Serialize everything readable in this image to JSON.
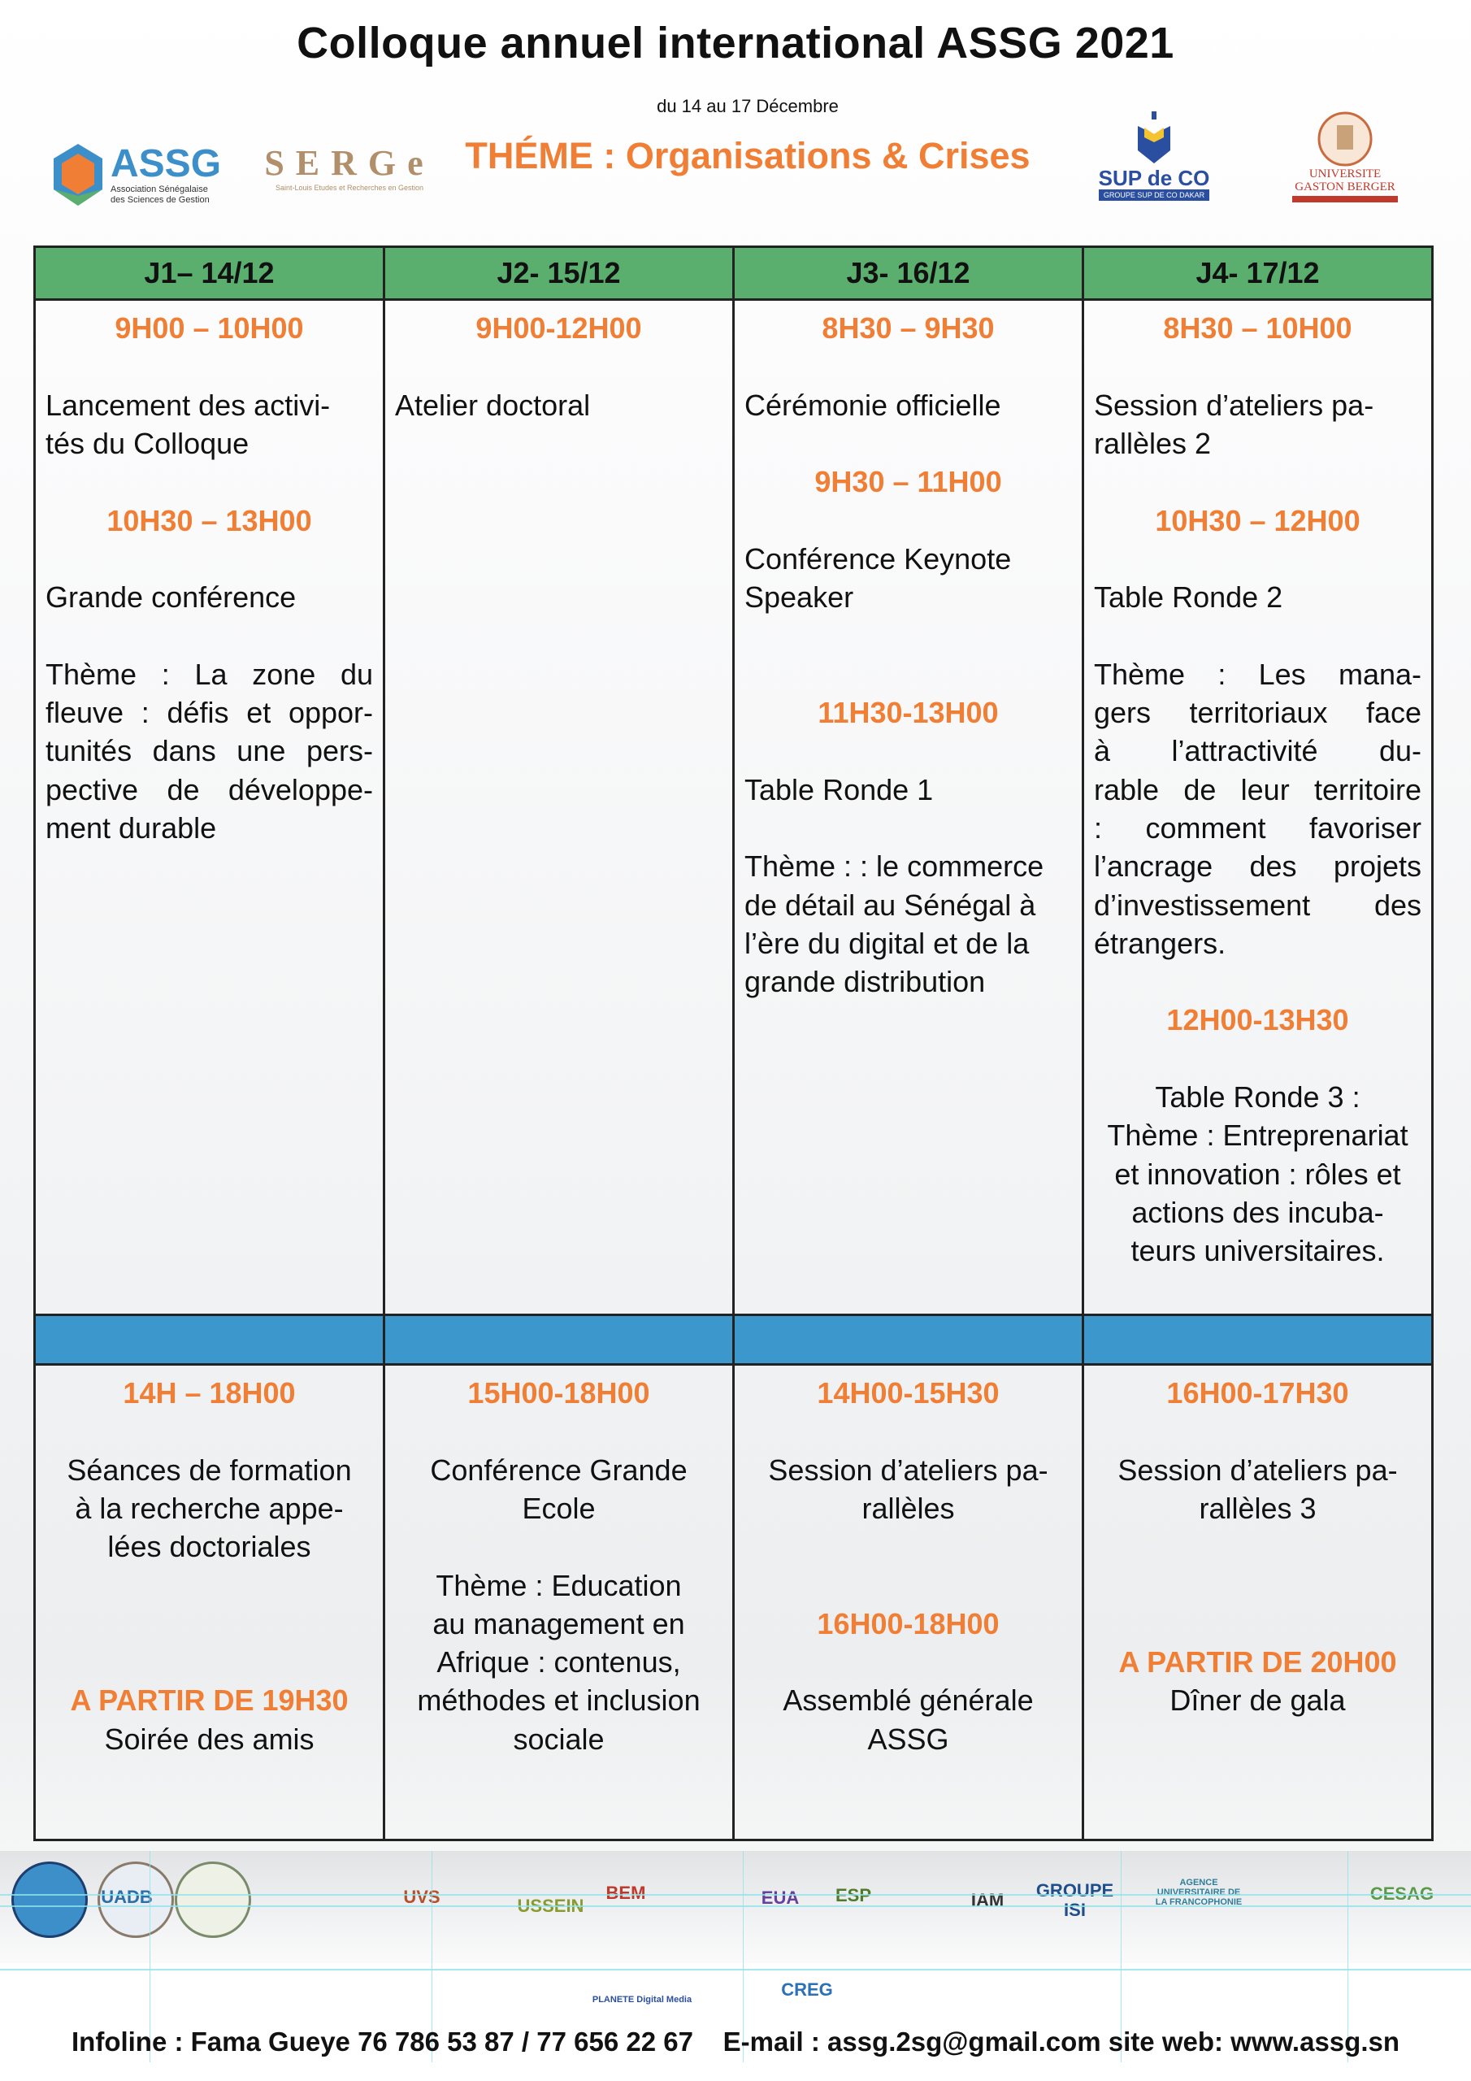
{
  "header": {
    "title": "Colloque annuel international ASSG 2021",
    "dates": "du 14 au 17 Décembre",
    "theme": "THÉME : Organisations & Crises",
    "logos": {
      "assg": "ASSG",
      "assg_sub": "Association Sénégalaise des Sciences de Gestion",
      "serge": "SERGe",
      "serge_sub": "Saint-Louis Etudes et Recherches en Gestion",
      "supdeco": "SUP de CO",
      "supdeco_sub": "GROUPE SUP DE CO DAKAR",
      "ugb": "UNIVERSITE GASTON BERGER"
    }
  },
  "colors": {
    "header_green": "#5aaf6e",
    "separator_blue": "#3c97cd",
    "time_orange": "#f07f35"
  },
  "schedule": {
    "days": [
      "J1– 14/12",
      "J2- 15/12",
      "J3- 16/12",
      "J4- 17/12"
    ],
    "morning": [
      [
        {
          "kind": "time",
          "lines": [
            "9H00 – 10H00"
          ]
        },
        {
          "kind": "text",
          "lines": [
            "Lancement des activi-",
            "tés du Colloque"
          ]
        },
        {
          "kind": "time",
          "lines": [
            "10H30 – 13H00"
          ]
        },
        {
          "kind": "text",
          "lines": [
            " Grande conférence"
          ]
        },
        {
          "kind": "text",
          "lines": [
            "Thème : La zone du",
            "fleuve : défis et oppor-",
            "tunités dans une pers-",
            "pective de développe-",
            "ment durable"
          ]
        }
      ],
      [
        {
          "kind": "time",
          "lines": [
            "9H00-12H00"
          ]
        },
        {
          "kind": "text",
          "lines": [
            "Atelier doctoral"
          ]
        }
      ],
      [
        {
          "kind": "time",
          "lines": [
            "8H30 – 9H30"
          ]
        },
        {
          "kind": "text",
          "lines": [
            "Cérémonie officielle"
          ]
        },
        {
          "kind": "time",
          "lines": [
            "9H30 – 11H00"
          ]
        },
        {
          "kind": "text",
          "lines": [
            "Conférence Keynote",
            "Speaker"
          ]
        },
        {
          "kind": "time",
          "lines": [
            "11H30-13H00"
          ]
        },
        {
          "kind": "text",
          "lines": [
            "Table Ronde 1"
          ]
        },
        {
          "kind": "text",
          "lines": [
            "Thème : : le commerce",
            "de détail au Sénégal à",
            "l’ère du digital et de la",
            "grande distribution"
          ]
        }
      ],
      [
        {
          "kind": "time",
          "lines": [
            "8H30 – 10H00"
          ]
        },
        {
          "kind": "text",
          "lines": [
            "Session d’ateliers pa-",
            "rallèles 2"
          ]
        },
        {
          "kind": "time",
          "lines": [
            "10H30 – 12H00"
          ]
        },
        {
          "kind": "text",
          "lines": [
            "Table Ronde 2"
          ]
        },
        {
          "kind": "text",
          "lines": [
            "Thème : Les mana-",
            "gers territoriaux face",
            "à l’attractivité du-",
            "rable de leur territoire",
            ": comment favoriser",
            "l’ancrage des projets",
            "d’investissement des",
            "étrangers."
          ]
        },
        {
          "kind": "time",
          "lines": [
            "12H00-13H30"
          ]
        },
        {
          "kind": "text",
          "lines": [
            "Table Ronde 3 :",
            "Thème : Entreprenariat",
            "et innovation : rôles et",
            "actions des incuba-",
            "teurs universitaires."
          ]
        }
      ]
    ],
    "afternoon": [
      [
        {
          "kind": "time",
          "lines": [
            "14H – 18H00"
          ]
        },
        {
          "kind": "text",
          "lines": [
            "Séances de formation",
            "à la recherche appe-",
            "lées doctoriales"
          ]
        },
        {
          "kind": "time",
          "lines": [
            "A PARTIR DE 19H30"
          ]
        },
        {
          "kind": "text",
          "lines": [
            "Soirée des amis"
          ]
        }
      ],
      [
        {
          "kind": "time",
          "lines": [
            "15H00-18H00"
          ]
        },
        {
          "kind": "text",
          "lines": [
            "Conférence Grande",
            "Ecole"
          ]
        },
        {
          "kind": "text",
          "lines": [
            "Thème : Education",
            "au management en",
            "Afrique : contenus,",
            "méthodes et inclusion",
            "sociale"
          ]
        }
      ],
      [
        {
          "kind": "time",
          "lines": [
            "14H00-15H30"
          ]
        },
        {
          "kind": "text",
          "lines": [
            "Session d’ateliers pa-",
            "rallèles"
          ]
        },
        {
          "kind": "time",
          "lines": [
            "16H00-18H00"
          ]
        },
        {
          "kind": "text",
          "lines": [
            "Assemblé générale",
            "ASSG"
          ]
        }
      ],
      [
        {
          "kind": "time",
          "lines": [
            "16H00-17H30"
          ]
        },
        {
          "kind": "text",
          "lines": [
            "Session d’ateliers pa-",
            "rallèles 3"
          ]
        },
        {
          "kind": "time",
          "lines": [
            "A PARTIR DE 20H00"
          ]
        },
        {
          "kind": "text",
          "lines": [
            "Dîner de gala"
          ]
        }
      ]
    ]
  },
  "partners": [
    "UADB",
    "UVS",
    "USSEIN",
    "BEM",
    "EUA",
    "ESP",
    "IAM",
    "GROUPE ISI",
    "AGENCE UNIVERSITAIRE DE LA FRANCOPHONIE",
    "CESAG",
    "PLANETE Digital Media",
    "CREG"
  ],
  "footer": {
    "contact": "Infoline : Fama Gueye 76 786 53 87 / 77 656 22 67    E-mail : assg.2sg@gmail.com site web: www.assg.sn"
  }
}
